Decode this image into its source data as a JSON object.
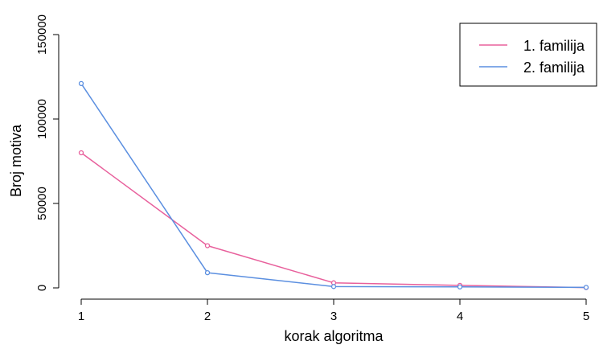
{
  "chart_data": {
    "type": "line",
    "xlabel": "korak algoritma",
    "ylabel": "Broj motiva",
    "x": [
      1,
      2,
      3,
      4,
      5
    ],
    "xticks": [
      "1",
      "2",
      "3",
      "4",
      "5"
    ],
    "yticks": [
      "0",
      "50000",
      "100000",
      "150000"
    ],
    "ylim": [
      0,
      150000
    ],
    "xlim": [
      1,
      5
    ],
    "grid": false,
    "legend_position": "top-right",
    "series": [
      {
        "name": "1. familija",
        "color": "#e8609c",
        "values": [
          80000,
          25000,
          3000,
          1500,
          200
        ]
      },
      {
        "name": "2. familija",
        "color": "#5b8fe0",
        "values": [
          121000,
          9000,
          800,
          600,
          300
        ]
      }
    ]
  }
}
